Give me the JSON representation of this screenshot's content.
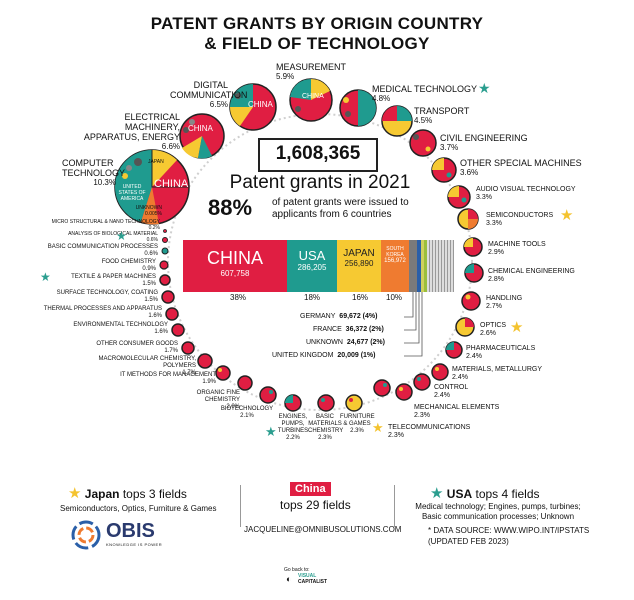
{
  "title": {
    "line1": "PATENT GRANTS BY ORIGIN COUNTRY",
    "line2": "& FIELD OF TECHNOLOGY"
  },
  "center": {
    "total": "1,608,365",
    "subtitle": "Patent grants in 2021",
    "stat": "88%",
    "stat_text_line1": "of patent grants were issued to",
    "stat_text_line2": "applicants from 6 countries"
  },
  "countries": [
    {
      "name": "CHINA",
      "value": "607,758",
      "pct": "38%",
      "color": "#e01e42"
    },
    {
      "name": "USA",
      "value": "286,205",
      "pct": "18%",
      "color": "#1f9b8f"
    },
    {
      "name": "JAPAN",
      "value": "256,890",
      "pct": "16%",
      "color": "#f6c932"
    },
    {
      "name": "SOUTH KOREA",
      "value": "156,972",
      "pct": "10%",
      "color": "#ef7b30"
    }
  ],
  "other_countries": [
    {
      "name": "GERMANY",
      "value": "69,672 (4%)"
    },
    {
      "name": "FRANCE",
      "value": "36,372 (2%)"
    },
    {
      "name": "UNKNOWN",
      "value": "24,677 (2%)"
    },
    {
      "name": "UNITED KINGDOM",
      "value": "20,009 (1%)"
    }
  ],
  "fields": {
    "computer": {
      "name": "COMPUTER TECHNOLOGY",
      "pct": "10.3%"
    },
    "electrical": {
      "name": "ELECTRICAL MACHINERY, APPARATUS, ENERGY",
      "pct": "6.6%"
    },
    "digital": {
      "name": "DIGITAL COMMUNICATION",
      "pct": "6.5%"
    },
    "measurement": {
      "name": "MEASUREMENT",
      "pct": "5.9%"
    },
    "medical": {
      "name": "MEDICAL TECHNOLOGY",
      "pct": "4.8%"
    },
    "transport": {
      "name": "TRANSPORT",
      "pct": "4.5%"
    },
    "civil": {
      "name": "CIVIL ENGINEERING",
      "pct": "3.7%"
    },
    "special": {
      "name": "OTHER SPECIAL MACHINES",
      "pct": "3.6%"
    },
    "audio": {
      "name": "AUDIO VISUAL TECHNOLOGY",
      "pct": "3.3%"
    },
    "semi": {
      "name": "SEMICONDUCTORS",
      "pct": "3.3%"
    },
    "machine": {
      "name": "MACHINE TOOLS",
      "pct": "2.9%"
    },
    "chemeng": {
      "name": "CHEMICAL ENGINEERING",
      "pct": "2.8%"
    },
    "handling": {
      "name": "HANDLING",
      "pct": "2.7%"
    },
    "optics": {
      "name": "OPTICS",
      "pct": "2.6%"
    },
    "pharma": {
      "name": "PHARMACEUTICALS",
      "pct": "2.4%"
    },
    "materials": {
      "name": "MATERIALS, METALLURGY",
      "pct": "2.4%"
    },
    "control": {
      "name": "CONTROL",
      "pct": "2.4%"
    },
    "mech": {
      "name": "MECHANICAL ELEMENTS",
      "pct": "2.3%"
    },
    "telecom": {
      "name": "TELECOMMUNICATIONS",
      "pct": "2.3%"
    },
    "furniture": {
      "name": "FURNITURE & GAMES",
      "pct": "2.3%"
    },
    "basicmat": {
      "name": "BASIC MATERIALS CHEMISTRY",
      "pct": "2.3%"
    },
    "engines": {
      "name": "ENGINES, PUMPS, TURBINES",
      "pct": "2.2%"
    },
    "biotech": {
      "name": "BIOTECHNOLOGY",
      "pct": "2.1%"
    },
    "organic": {
      "name": "ORGANIC FINE CHEMISTRY",
      "pct": "2.0%"
    },
    "itmethods": {
      "name": "IT METHODS FOR MANAGEMENT",
      "pct": "1.9%"
    },
    "macro": {
      "name": "MACROMOLECULAR CHEMISTRY, POLYMERS",
      "pct": "1.7%"
    },
    "consumer": {
      "name": "OTHER CONSUMER GOODS",
      "pct": "1.7%"
    },
    "environ": {
      "name": "ENVIRONMENTAL TECHNOLOGY",
      "pct": "1.6%"
    },
    "thermal": {
      "name": "THERMAL PROCESSES AND APPARATUS",
      "pct": "1.6%"
    },
    "surface": {
      "name": "SURFACE TECHNOLOGY, COATING",
      "pct": "1.5%"
    },
    "textile": {
      "name": "TEXTILE & PAPER MACHINES",
      "pct": "1.5%"
    },
    "food": {
      "name": "FOOD CHEMISTRY",
      "pct": "0.9%"
    },
    "basiccomm": {
      "name": "BASIC COMMUNICATION PROCESSES",
      "pct": "0.6%"
    },
    "analysis": {
      "name": "ANALYSIS OF BIOLOGICAL MATERIAL",
      "pct": "0.6%"
    },
    "micro": {
      "name": "MICRO STRUCTURAL & NANO TECHNOLOGY",
      "pct": "0.2%"
    },
    "unknown": {
      "name": "UNKNOWN",
      "pct": "0.005%"
    }
  },
  "bubble_labels": {
    "china": "CHINA",
    "usa": "UNITED STATES OF AMERICA",
    "japan": "JAPAN"
  },
  "footer": {
    "japan_strong": "Japan",
    "japan_rest": "tops 3 fields",
    "japan_detail": "Semiconductors, Optics, Furniture & Games",
    "china_badge": "China",
    "china_rest": "tops 29 fields",
    "usa_strong": "USA",
    "usa_rest": "tops 4 fields",
    "usa_detail_1": "Medical technology; Engines, pumps, turbines;",
    "usa_detail_2": "Basic communication processes; Unknown",
    "brand": "OBIS",
    "brand_tag": "KNOWLEDGE IS POWER",
    "email": "JACQUELINE@OMNIBUSOLUTIONS.COM",
    "source": "* DATA SOURCE: WWW.WIPO.INT/IPSTATS",
    "updated": "(UPDATED FEB 2023)",
    "go_back": "Go back to:",
    "vc_1": "VISUAL",
    "vc_2": "CAPITALIST"
  },
  "colors": {
    "china": "#e01e42",
    "usa": "#1f9b8f",
    "japan": "#f6c932",
    "korea": "#ef7b30",
    "star_yellow": "#f4c32f",
    "star_teal": "#2b9e8f"
  }
}
